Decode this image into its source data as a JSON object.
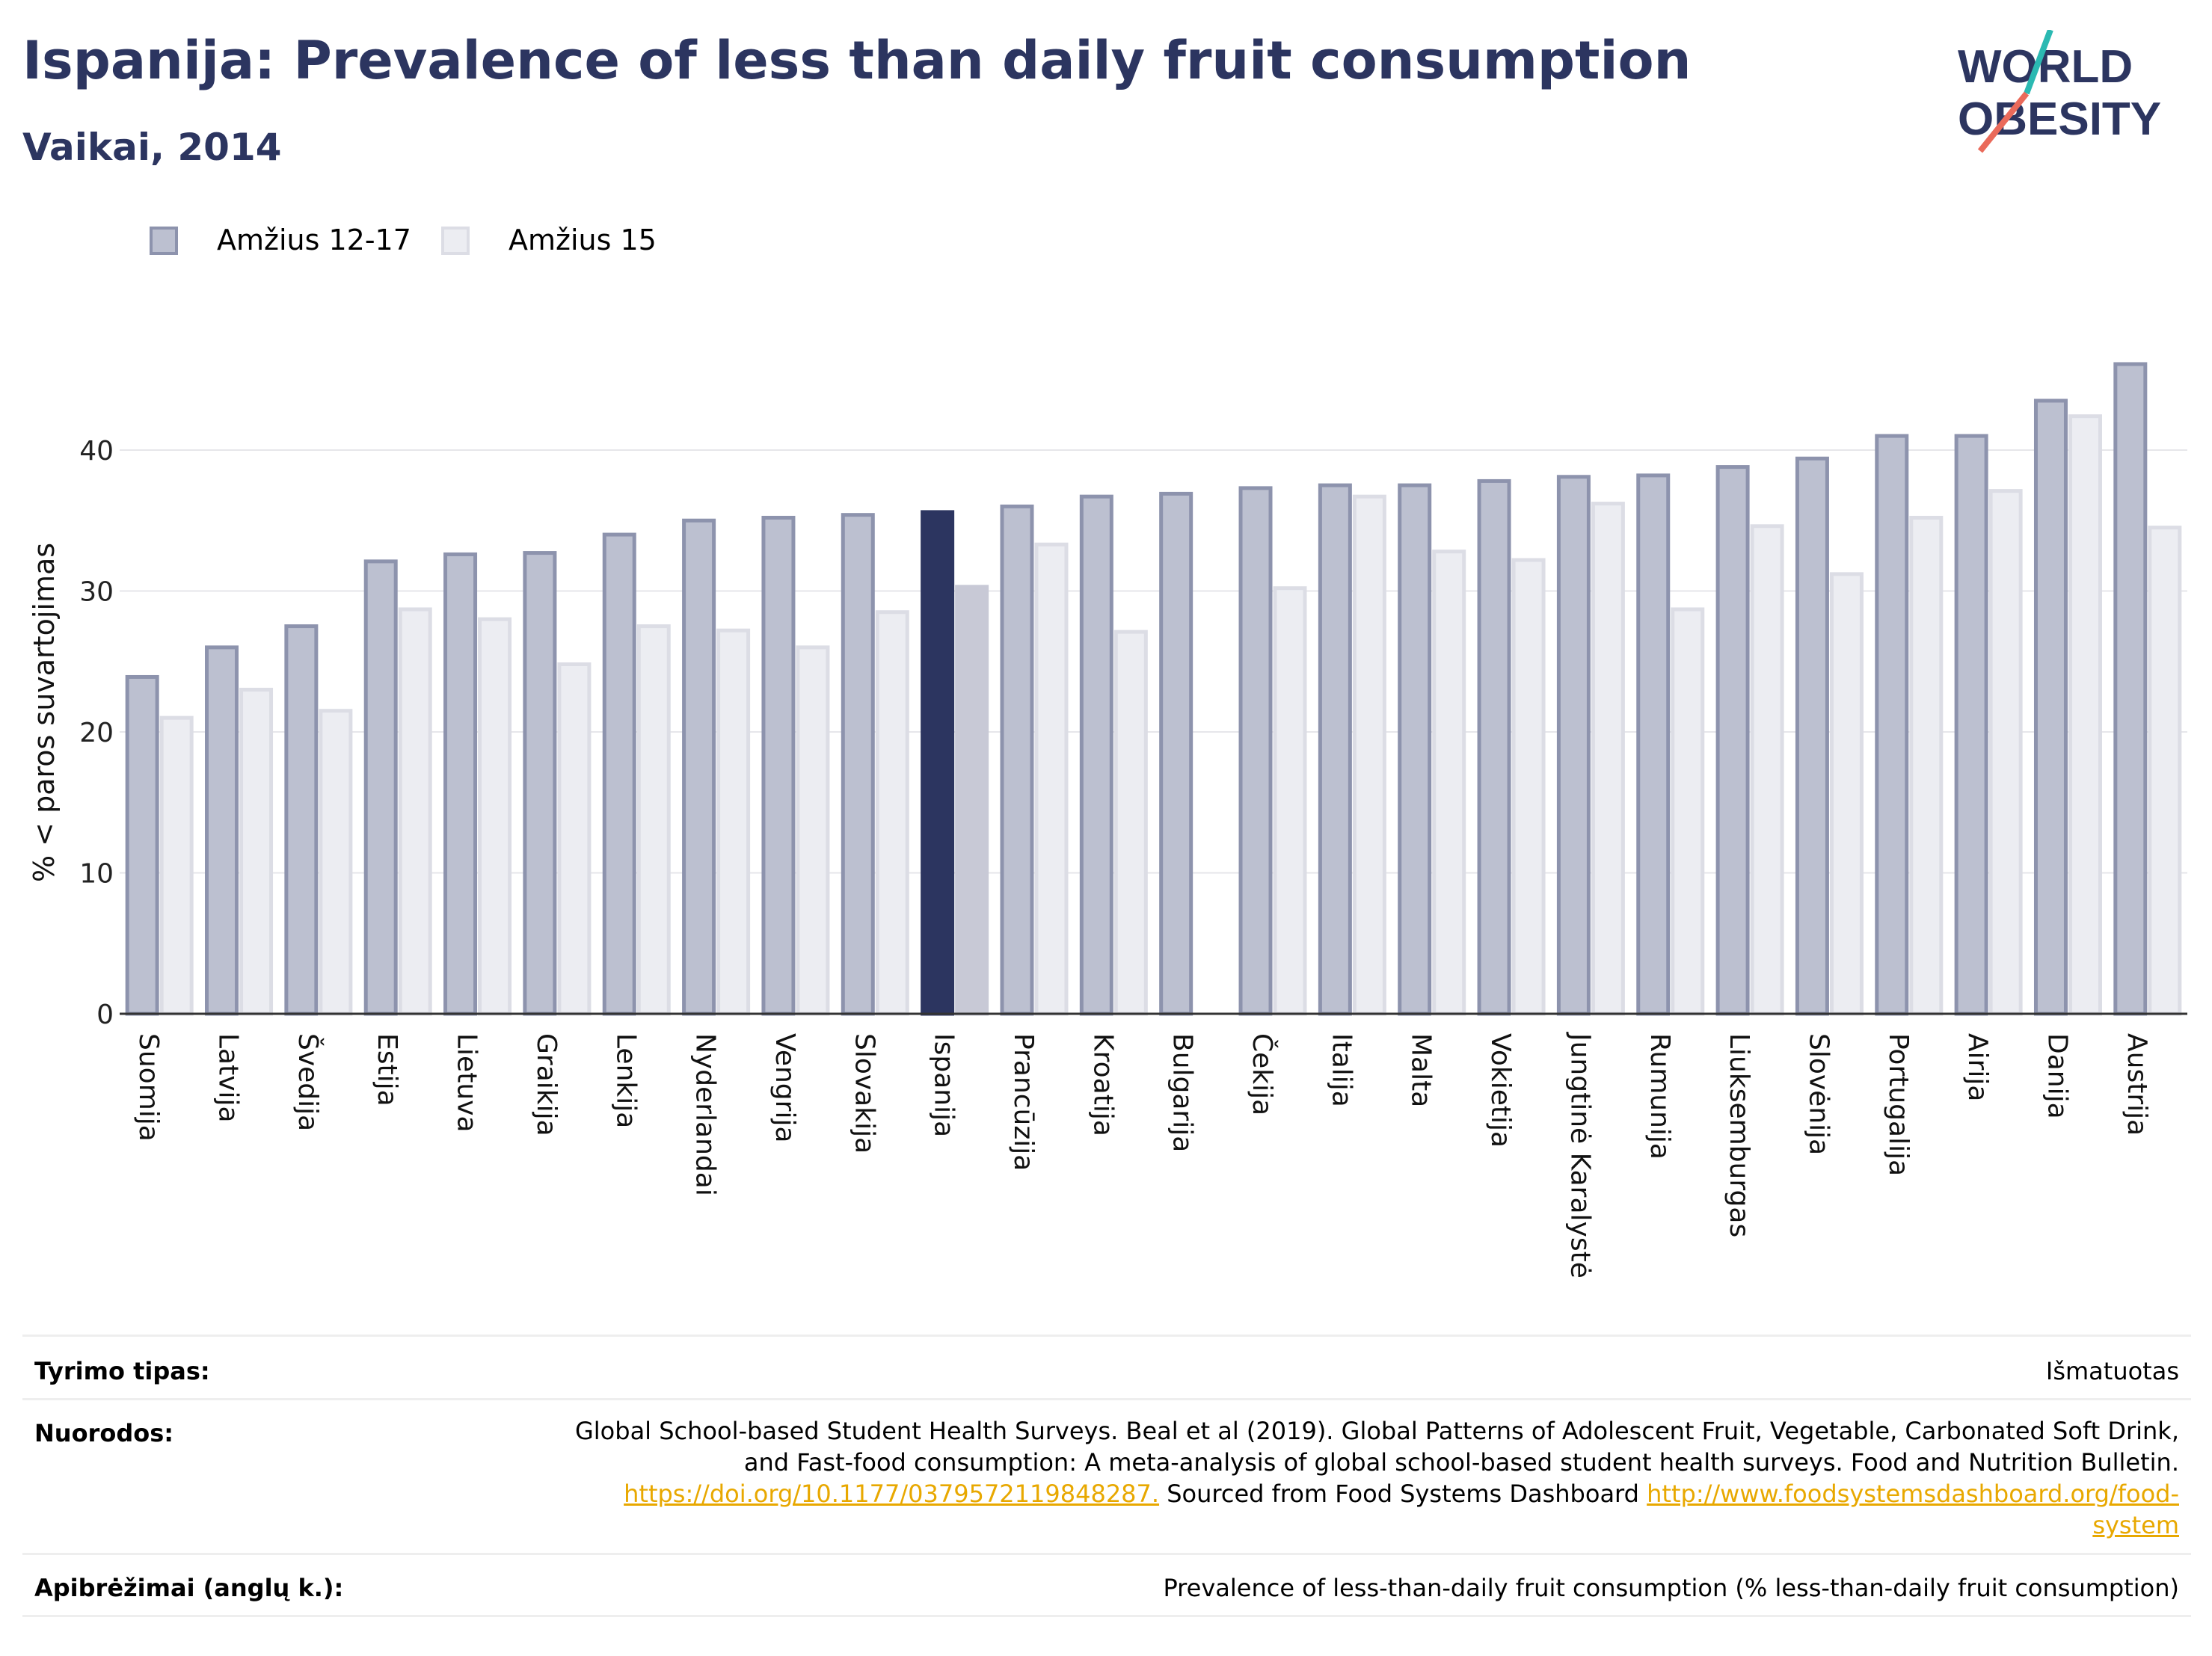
{
  "header": {
    "title": "Ispanija: Prevalence of less than daily fruit consumption",
    "subtitle": "Vaikai, 2014"
  },
  "logo": {
    "line1": "WORLD",
    "line2": "OBESITY"
  },
  "colors": {
    "title": "#2c3560",
    "series1_fill": "#bcc0d0",
    "series1_stroke": "#8d93ad",
    "series2_fill": "#ecedf2",
    "series2_stroke": "#dcdde5",
    "highlight1": "#2c3560",
    "highlight2": "#c8c9d6",
    "link": "#e8a800"
  },
  "legend": [
    {
      "label": "Amžius 12-17"
    },
    {
      "label": "Amžius 15"
    }
  ],
  "chart_data": {
    "type": "bar",
    "title": "Ispanija: Prevalence of less than daily fruit consumption",
    "subtitle": "Vaikai, 2014",
    "ylabel": "% < paros suvartojimas",
    "xlabel": "",
    "ylim": [
      0,
      47
    ],
    "yticks": [
      0,
      10,
      20,
      30,
      40
    ],
    "grid": true,
    "legend_position": "top-left",
    "highlight": "Ispanija",
    "categories": [
      "Suomija",
      "Latvija",
      "Švedija",
      "Estija",
      "Lietuva",
      "Graikija",
      "Lenkija",
      "Nyderlandai",
      "Vengrija",
      "Slovakija",
      "Ispanija",
      "Prancūzija",
      "Kroatija",
      "Bulgarija",
      "Čekija",
      "Italija",
      "Malta",
      "Vokietija",
      "Jungtinė Karalystė",
      "Rumunija",
      "Liuksemburgas",
      "Slovėnija",
      "Portugalija",
      "Airija",
      "Danija",
      "Austrija"
    ],
    "series": [
      {
        "name": "Amžius 12-17",
        "values": [
          23.9,
          26.0,
          27.5,
          32.1,
          32.6,
          32.7,
          34.0,
          35.0,
          35.2,
          35.4,
          35.6,
          36.0,
          36.7,
          36.9,
          37.3,
          37.5,
          37.5,
          37.8,
          38.1,
          38.2,
          38.8,
          39.4,
          41.0,
          41.0,
          43.5,
          46.1
        ]
      },
      {
        "name": "Amžius 15",
        "values": [
          21.0,
          23.0,
          21.5,
          28.7,
          28.0,
          24.8,
          27.5,
          27.2,
          26.0,
          28.5,
          30.3,
          33.3,
          27.1,
          null,
          30.2,
          36.7,
          32.8,
          32.2,
          36.2,
          28.7,
          34.6,
          31.2,
          35.2,
          37.1,
          42.4,
          34.5
        ]
      }
    ]
  },
  "meta": {
    "survey_type_label": "Tyrimo tipas:",
    "survey_type_value": "Išmatuotas",
    "references_label": "Nuorodos:",
    "references_line1": "Global School-based Student Health Surveys. Beal et al (2019). Global Patterns of Adolescent Fruit, Vegetable, Carbonated Soft Drink,",
    "references_line2": "and Fast-food consumption: A meta-analysis of global school-based student health surveys. Food and Nutrition Bulletin.",
    "references_link1": "https://doi.org/10.1177/0379572119848287.",
    "references_mid": " Sourced from Food Systems Dashboard ",
    "references_link2a": "http://www.foodsystemsdashboard.org/food-",
    "references_link2b": "system",
    "definitions_label": "Apibrėžimai (anglų k.):",
    "definitions_value": "Prevalence of less-than-daily fruit consumption (% less-than-daily fruit consumption)"
  }
}
